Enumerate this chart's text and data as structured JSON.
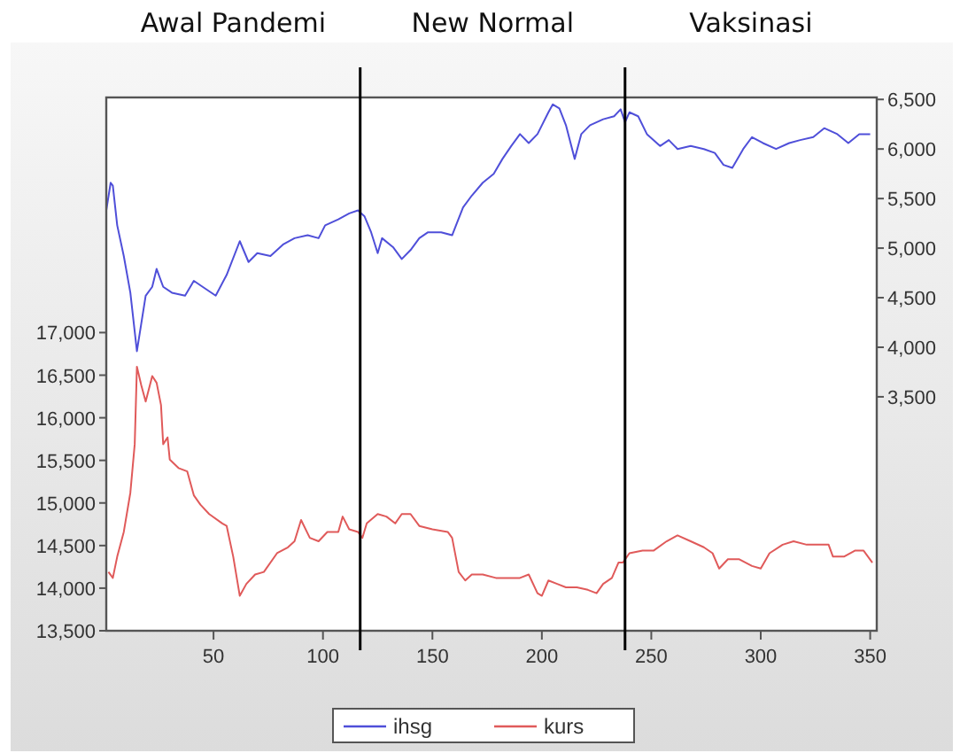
{
  "chart_data": {
    "type": "line",
    "xlim": [
      1,
      353
    ],
    "xticks": [
      50,
      100,
      150,
      200,
      250,
      300,
      350
    ],
    "ylim": [
      13500,
      19760
    ],
    "yticks": [
      {
        "value": 13500,
        "label": "13,500"
      },
      {
        "value": 14000,
        "label": "14,000"
      },
      {
        "value": 14500,
        "label": "14,500"
      },
      {
        "value": 15000,
        "label": "15,000"
      },
      {
        "value": 15500,
        "label": "15,500"
      },
      {
        "value": 16000,
        "label": "16,000"
      },
      {
        "value": 16500,
        "label": "16,500"
      },
      {
        "value": 17000,
        "label": "17,000"
      }
    ],
    "y2lim": [
      1140,
      6520
    ],
    "y2ticks": [
      {
        "value": 3500,
        "label": "3,500"
      },
      {
        "value": 4000,
        "label": "4,000"
      },
      {
        "value": 4500,
        "label": "4,500"
      },
      {
        "value": 5000,
        "label": "5,000"
      },
      {
        "value": 5500,
        "label": "5,500"
      },
      {
        "value": 6000,
        "label": "6,000"
      },
      {
        "value": 6500,
        "label": "6,500"
      }
    ],
    "legend": "bottom",
    "grid": false,
    "ref_lines": [
      {
        "axis": "x",
        "value": 117,
        "color": "#000000"
      },
      {
        "axis": "x",
        "value": 238,
        "color": "#000000"
      }
    ],
    "annotations": [
      "Awal Pandemi",
      "New Normal",
      "Vaksinasi"
    ],
    "series": [
      {
        "name": "ihsg",
        "color": "#4f4fd9",
        "axis": "y2",
        "x": [
          1,
          3,
          4,
          6,
          9,
          12,
          15,
          17,
          19,
          22,
          24,
          27,
          31,
          37,
          41,
          45,
          51,
          56,
          62,
          66,
          70,
          76,
          82,
          87,
          93,
          98,
          101,
          107,
          112,
          116,
          119,
          122,
          125,
          127,
          132,
          136,
          140,
          144,
          148,
          154,
          159,
          164,
          168,
          173,
          178,
          182,
          186,
          190,
          194,
          198,
          203,
          205,
          208,
          211,
          215,
          218,
          222,
          228,
          233,
          236,
          238,
          240,
          244,
          248,
          254,
          258,
          262,
          268,
          274,
          279,
          283,
          287,
          292,
          296,
          301,
          307,
          313,
          318,
          324,
          329,
          335,
          340,
          345,
          350
        ],
        "values": [
          5380,
          5660,
          5630,
          5230,
          4920,
          4550,
          3960,
          4240,
          4520,
          4610,
          4790,
          4610,
          4550,
          4520,
          4670,
          4610,
          4520,
          4730,
          5070,
          4860,
          4950,
          4920,
          5040,
          5100,
          5130,
          5100,
          5230,
          5290,
          5350,
          5380,
          5320,
          5160,
          4950,
          5100,
          5010,
          4890,
          4980,
          5100,
          5160,
          5160,
          5130,
          5410,
          5530,
          5660,
          5750,
          5900,
          6030,
          6150,
          6060,
          6150,
          6370,
          6450,
          6410,
          6240,
          5900,
          6150,
          6240,
          6300,
          6330,
          6400,
          6270,
          6370,
          6330,
          6150,
          6030,
          6090,
          6000,
          6030,
          6000,
          5960,
          5840,
          5810,
          6000,
          6120,
          6060,
          6000,
          6060,
          6090,
          6120,
          6210,
          6150,
          6060,
          6150,
          6150
        ]
      },
      {
        "name": "kurs",
        "color": "#e05a5a",
        "axis": "y",
        "x": [
          2,
          4,
          6,
          9,
          12,
          14,
          15,
          17,
          19,
          22,
          24,
          26,
          27,
          29,
          30,
          34,
          38,
          41,
          44,
          48,
          54,
          56,
          59,
          62,
          65,
          69,
          73,
          79,
          84,
          87,
          90,
          94,
          98,
          102,
          107,
          109,
          112,
          116,
          118,
          120,
          125,
          129,
          133,
          136,
          140,
          144,
          150,
          157,
          159,
          162,
          165,
          168,
          173,
          179,
          184,
          190,
          194,
          198,
          200,
          203,
          207,
          211,
          216,
          221,
          225,
          228,
          232,
          235,
          237,
          240,
          246,
          251,
          257,
          262,
          268,
          274,
          278,
          281,
          285,
          290,
          296,
          300,
          304,
          310,
          315,
          321,
          326,
          331,
          333,
          338,
          343,
          347,
          351
        ],
        "values": [
          14190,
          14120,
          14370,
          14660,
          15120,
          15690,
          16600,
          16380,
          16190,
          16490,
          16410,
          16150,
          15690,
          15770,
          15510,
          15410,
          15370,
          15090,
          14980,
          14870,
          14760,
          14730,
          14370,
          13910,
          14050,
          14160,
          14190,
          14410,
          14480,
          14550,
          14800,
          14590,
          14550,
          14660,
          14660,
          14840,
          14690,
          14660,
          14590,
          14760,
          14870,
          14840,
          14760,
          14870,
          14870,
          14730,
          14690,
          14660,
          14590,
          14190,
          14090,
          14160,
          14160,
          14120,
          14120,
          14120,
          14160,
          13940,
          13910,
          14090,
          14050,
          14010,
          14010,
          13980,
          13940,
          14050,
          14120,
          14300,
          14300,
          14410,
          14440,
          14440,
          14550,
          14620,
          14550,
          14480,
          14410,
          14230,
          14340,
          14340,
          14260,
          14230,
          14410,
          14510,
          14550,
          14510,
          14510,
          14510,
          14370,
          14370,
          14440,
          14440,
          14300
        ]
      }
    ]
  }
}
